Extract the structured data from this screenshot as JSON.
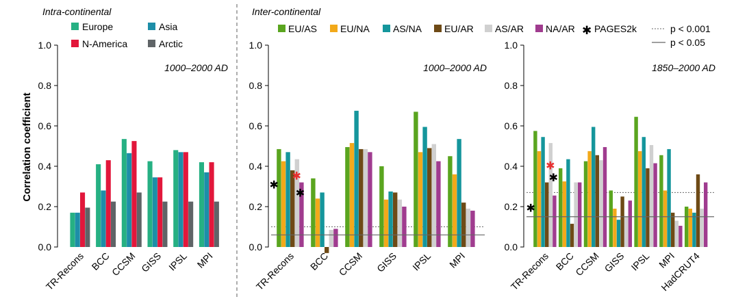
{
  "ylabel": "Correlation coefficient",
  "colors": {
    "Europe": "#26b083",
    "Asia": "#1d8ea8",
    "N-America": "#e2173b",
    "Arctic": "#5f6467",
    "EU/AS": "#5aa51f",
    "EU/NA": "#f2a91a",
    "AS/NA": "#15969c",
    "EU/AR": "#6e4a16",
    "AS/AR": "#d0d0d0",
    "NA/AR": "#a03c8f",
    "pages2k_black": "#000000",
    "pages2k_red": "#e8302f",
    "sig_line": "#666666"
  },
  "legends": {
    "intra": [
      "Europe",
      "Asia",
      "N-America",
      "Arctic"
    ],
    "inter": [
      "EU/AS",
      "EU/NA",
      "AS/NA",
      "EU/AR",
      "AS/AR",
      "NA/AR"
    ],
    "pages2k": "PAGES2k",
    "p001": "p < 0.001",
    "p005": "p < 0.05"
  },
  "chart_data": [
    {
      "type": "bar",
      "title": "Intra-continental",
      "period": "1000–2000 AD",
      "ylim": [
        0,
        1
      ],
      "yticks": [
        "0.0",
        "0.2",
        "0.4",
        "0.6",
        "0.8",
        "1.0"
      ],
      "categories": [
        "TR-Recons",
        "BCC",
        "CCSM",
        "GISS",
        "IPSL",
        "MPI"
      ],
      "series": [
        {
          "name": "Europe",
          "values": [
            0.17,
            0.41,
            0.535,
            0.425,
            0.48,
            0.42
          ]
        },
        {
          "name": "Asia",
          "values": [
            0.17,
            0.28,
            0.465,
            0.345,
            0.47,
            0.37
          ]
        },
        {
          "name": "N-America",
          "values": [
            0.27,
            0.43,
            0.525,
            0.345,
            0.47,
            0.42
          ]
        },
        {
          "name": "Arctic",
          "values": [
            0.195,
            0.225,
            0.27,
            0.225,
            0.225,
            0.225
          ]
        }
      ]
    },
    {
      "type": "bar",
      "title": "Inter-continental",
      "period": "1000–2000 AD",
      "ylim": [
        0,
        1
      ],
      "yticks": [
        "0.0",
        "0.2",
        "0.4",
        "0.6",
        "0.8",
        "1.0"
      ],
      "categories": [
        "TR-Recons",
        "BCC",
        "CCSM",
        "GISS",
        "IPSL",
        "MPI"
      ],
      "series": [
        {
          "name": "EU/AS",
          "values": [
            0.485,
            0.34,
            0.495,
            0.4,
            0.67,
            0.45
          ]
        },
        {
          "name": "EU/NA",
          "values": [
            0.425,
            0.24,
            0.515,
            0.235,
            0.47,
            0.36
          ]
        },
        {
          "name": "AS/NA",
          "values": [
            0.47,
            0.27,
            0.675,
            0.275,
            0.595,
            0.535
          ]
        },
        {
          "name": "EU/AR",
          "values": [
            0.38,
            -0.03,
            0.485,
            0.27,
            0.49,
            0.22
          ]
        },
        {
          "name": "AS/AR",
          "values": [
            0.435,
            0.085,
            0.485,
            0.235,
            0.51,
            0.19
          ]
        },
        {
          "name": "NA/AR",
          "values": [
            0.32,
            0.09,
            0.47,
            0.2,
            0.425,
            0.18
          ]
        }
      ],
      "pages2k": [
        {
          "category": "TR-Recons",
          "value": 0.31,
          "color": "black"
        },
        {
          "category": "TR-Recons",
          "value": 0.355,
          "color": "red"
        },
        {
          "category": "TR-Recons",
          "value": 0.27,
          "color": "black"
        }
      ],
      "significance": {
        "p001": 0.1,
        "p005": 0.06
      }
    },
    {
      "type": "bar",
      "title": "",
      "period": "1850–2000 AD",
      "ylim": [
        0,
        1
      ],
      "yticks": [
        "0.0",
        "0.2",
        "0.4",
        "0.6",
        "0.8",
        "1.0"
      ],
      "categories": [
        "TR-Recons",
        "BCC",
        "CCSM",
        "GISS",
        "IPSL",
        "MPI",
        "HadCRUT4"
      ],
      "series": [
        {
          "name": "EU/AS",
          "values": [
            0.575,
            0.39,
            0.425,
            0.28,
            0.645,
            0.455,
            0.2
          ]
        },
        {
          "name": "EU/NA",
          "values": [
            0.475,
            0.325,
            0.475,
            0.19,
            0.475,
            0.28,
            0.19
          ]
        },
        {
          "name": "AS/NA",
          "values": [
            0.545,
            0.435,
            0.595,
            0.135,
            0.545,
            0.485,
            0.17
          ]
        },
        {
          "name": "EU/AR",
          "values": [
            0.32,
            0.115,
            0.455,
            0.25,
            0.39,
            0.17,
            0.36
          ]
        },
        {
          "name": "AS/AR",
          "values": [
            0.515,
            0.32,
            0.43,
            0.15,
            0.505,
            0.13,
            0.19
          ]
        },
        {
          "name": "NA/AR",
          "values": [
            0.255,
            0.32,
            0.495,
            0.23,
            0.415,
            0.105,
            0.32
          ]
        }
      ],
      "pages2k": [
        {
          "category": "TR-Recons",
          "value": 0.195,
          "color": "black"
        },
        {
          "category": "TR-Recons",
          "value": 0.405,
          "color": "red"
        },
        {
          "category": "TR-Recons",
          "value": 0.345,
          "color": "black"
        }
      ],
      "significance": {
        "p001": 0.27,
        "p005": 0.15
      }
    }
  ]
}
